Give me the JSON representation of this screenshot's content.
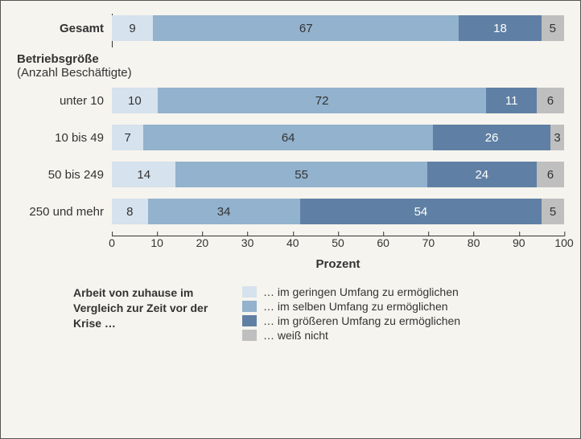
{
  "chart": {
    "type": "stacked-bar-horizontal",
    "background_color": "#f6f4ee",
    "border_color": "#555555",
    "font_family": "Arial",
    "label_fontsize": 15,
    "value_fontsize": 15,
    "colors": {
      "gering": "#d6e2ed",
      "selben": "#92b2cd",
      "groesser": "#5f80a4",
      "weissnicht": "#bfbfbf"
    },
    "x_axis": {
      "label": "Prozent",
      "min": 0,
      "max": 100,
      "tick_step": 10,
      "ticks": [
        0,
        10,
        20,
        30,
        40,
        50,
        60,
        70,
        80,
        90,
        100
      ]
    },
    "total_row": {
      "label": "Gesamt",
      "values": {
        "gering": 9,
        "selben": 67,
        "groesser": 18,
        "weissnicht": 5
      }
    },
    "section_header": {
      "main": "Betriebsgröße",
      "sub": "(Anzahl Beschäftigte)"
    },
    "rows": [
      {
        "label": "unter 10",
        "values": {
          "gering": 10,
          "selben": 72,
          "groesser": 11,
          "weissnicht": 6
        }
      },
      {
        "label": "10 bis 49",
        "values": {
          "gering": 7,
          "selben": 64,
          "groesser": 26,
          "weissnicht": 3
        }
      },
      {
        "label": "50 bis 249",
        "values": {
          "gering": 14,
          "selben": 55,
          "groesser": 24,
          "weissnicht": 6
        }
      },
      {
        "label": "250 und mehr",
        "values": {
          "gering": 8,
          "selben": 34,
          "groesser": 54,
          "weissnicht": 5
        }
      }
    ],
    "legend": {
      "title": "Arbeit von zuhause im Vergleich zur Zeit vor der Krise …",
      "items": [
        {
          "key": "gering",
          "label": "… im geringen Umfang zu ermöglichen"
        },
        {
          "key": "selben",
          "label": "… im selben Umfang zu ermöglichen"
        },
        {
          "key": "groesser",
          "label": "… im größeren Umfang zu ermöglichen"
        },
        {
          "key": "weissnicht",
          "label": "… weiß nicht"
        }
      ]
    }
  }
}
